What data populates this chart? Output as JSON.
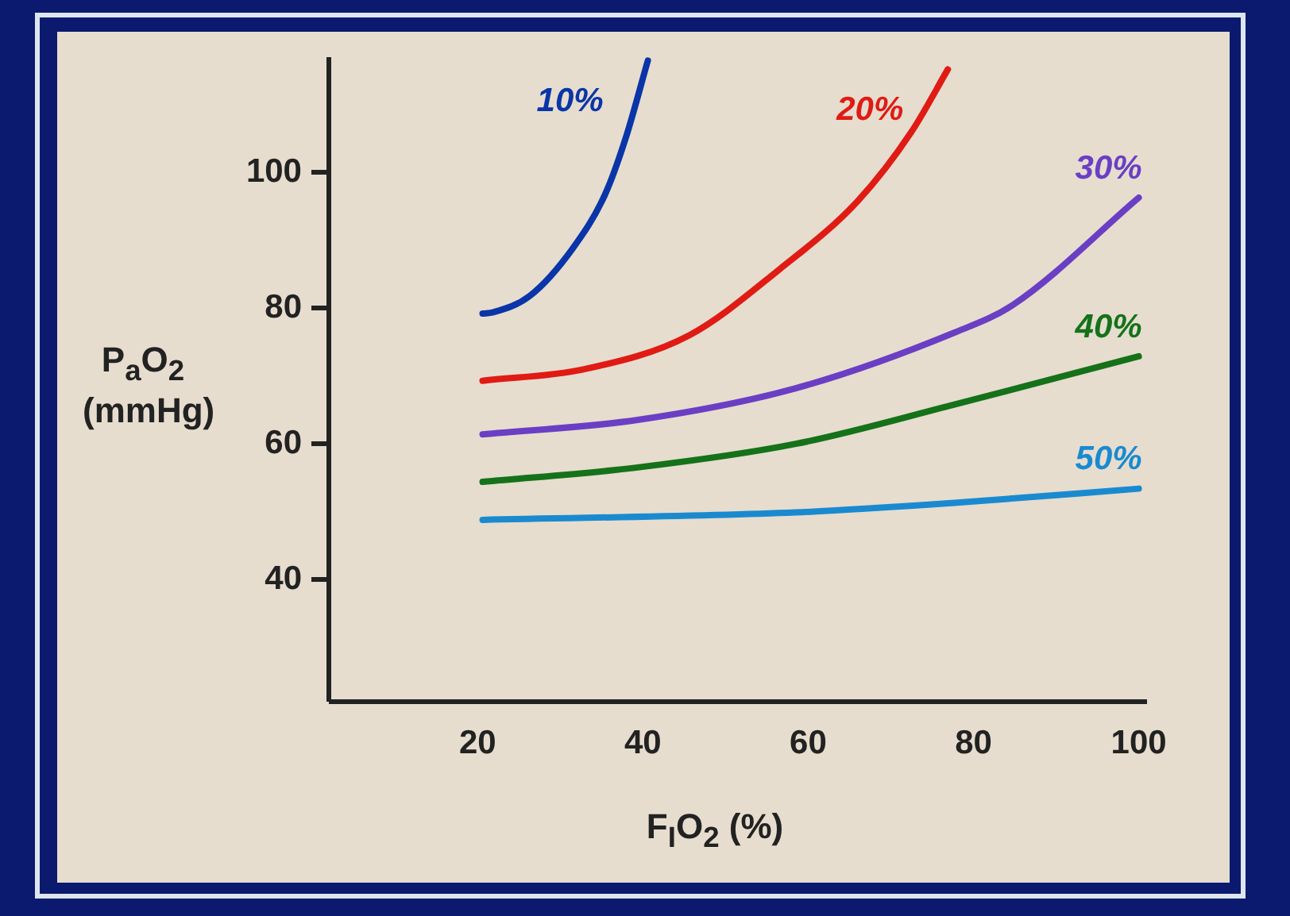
{
  "chart_data": {
    "type": "line",
    "xlabel": "F$_{I}$O$_{2}$ (%)",
    "ylabel": "P$_{a}$O$_{2}$ (mmHg)",
    "xlim": [
      2,
      101
    ],
    "ylim": [
      22,
      117
    ],
    "xticks": [
      20,
      40,
      60,
      80,
      100
    ],
    "yticks": [
      40,
      60,
      80,
      100
    ],
    "legend": false,
    "marker": "none",
    "line_style": "solid",
    "series": [
      {
        "name": "10%",
        "color": "#0a35a8",
        "x": [
          20.6,
          21.9,
          26.3,
          31.5,
          35.4,
          37.9,
          40.6
        ],
        "values": [
          79.2,
          79.4,
          81.8,
          88.8,
          96.7,
          105,
          116.5
        ]
      },
      {
        "name": "20%",
        "color": "#e01b14",
        "x": [
          20.6,
          32.9,
          45.6,
          56.5,
          66,
          72.5,
          76.9
        ],
        "values": [
          69.3,
          71,
          76,
          85.7,
          95.8,
          106,
          115.2
        ]
      },
      {
        "name": "30%",
        "color": "#6a3fc4",
        "x": [
          20.6,
          39.2,
          58.5,
          77.7,
          84.8,
          100
        ],
        "values": [
          61.4,
          63.5,
          68.2,
          76.4,
          80.5,
          96.3
        ]
      },
      {
        "name": "40%",
        "color": "#157219",
        "x": [
          20.6,
          39.2,
          58.5,
          77.7,
          100
        ],
        "values": [
          54.4,
          56.5,
          60,
          65.8,
          72.9
        ]
      },
      {
        "name": "50%",
        "color": "#1a8ad0",
        "x": [
          20.6,
          58.5,
          77.7,
          100
        ],
        "values": [
          48.8,
          49.9,
          51.3,
          53.4
        ]
      }
    ]
  }
}
